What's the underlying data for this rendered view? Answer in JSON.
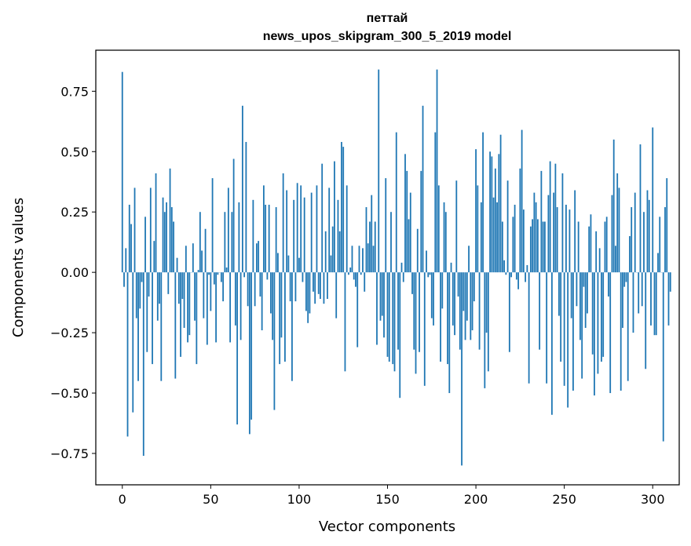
{
  "chart_data": {
    "type": "bar",
    "title_line1": "петтай",
    "title_line2": "news_upos_skipgram_300_5_2019 model",
    "xlabel": "Vector components",
    "ylabel": "Components values",
    "xlim": [
      -15,
      315
    ],
    "ylim": [
      -0.88,
      0.92
    ],
    "xticks": [
      0,
      50,
      100,
      150,
      200,
      250,
      300
    ],
    "xtick_labels": [
      "0",
      "50",
      "100",
      "150",
      "200",
      "250",
      "300"
    ],
    "yticks": [
      -0.75,
      -0.5,
      -0.25,
      0.0,
      0.25,
      0.5,
      0.75
    ],
    "ytick_labels": [
      "−0.75",
      "−0.50",
      "−0.25",
      "0.00",
      "0.25",
      "0.50",
      "0.75"
    ],
    "bar_color": "#1f77b4",
    "values": [
      0.83,
      -0.06,
      0.1,
      -0.68,
      0.28,
      0.2,
      -0.58,
      0.35,
      -0.19,
      -0.45,
      -0.15,
      -0.04,
      -0.76,
      0.23,
      -0.33,
      -0.1,
      0.35,
      -0.38,
      0.13,
      0.41,
      -0.2,
      -0.13,
      -0.45,
      0.31,
      0.25,
      0.29,
      -0.09,
      0.43,
      0.27,
      0.21,
      -0.44,
      0.06,
      -0.13,
      -0.35,
      -0.11,
      -0.23,
      0.11,
      -0.29,
      -0.26,
      0.0,
      0.12,
      -0.2,
      -0.38,
      0.01,
      0.25,
      0.09,
      -0.19,
      0.18,
      -0.3,
      -0.01,
      -0.16,
      0.39,
      -0.05,
      -0.29,
      -0.01,
      0.0,
      -0.04,
      -0.12,
      0.25,
      0.02,
      0.35,
      -0.29,
      0.25,
      0.47,
      -0.22,
      -0.63,
      0.29,
      -0.28,
      0.69,
      -0.02,
      0.54,
      -0.14,
      -0.67,
      -0.61,
      0.3,
      -0.14,
      0.12,
      0.13,
      -0.1,
      -0.24,
      0.36,
      0.28,
      -0.03,
      0.28,
      -0.17,
      -0.28,
      -0.57,
      0.27,
      0.08,
      -0.38,
      -0.27,
      0.41,
      -0.37,
      0.34,
      0.07,
      -0.12,
      -0.45,
      0.3,
      -0.12,
      0.37,
      0.06,
      0.36,
      -0.04,
      0.31,
      -0.16,
      -0.21,
      -0.17,
      0.33,
      -0.08,
      -0.13,
      0.36,
      -0.09,
      -0.11,
      0.45,
      -0.13,
      0.17,
      -0.11,
      0.35,
      0.07,
      0.19,
      0.46,
      -0.19,
      0.3,
      0.17,
      0.54,
      0.52,
      -0.41,
      0.36,
      -0.01,
      0.02,
      0.11,
      -0.03,
      -0.06,
      -0.31,
      0.11,
      -0.01,
      0.1,
      -0.08,
      0.27,
      0.12,
      0.21,
      0.32,
      0.11,
      0.21,
      -0.3,
      0.84,
      -0.2,
      -0.18,
      -0.27,
      0.39,
      -0.35,
      -0.37,
      0.25,
      -0.38,
      -0.41,
      0.58,
      -0.32,
      -0.52,
      0.04,
      -0.04,
      0.49,
      0.42,
      0.22,
      0.33,
      -0.09,
      -0.32,
      -0.42,
      0.18,
      -0.33,
      0.42,
      0.69,
      -0.47,
      0.09,
      -0.02,
      -0.01,
      -0.19,
      -0.22,
      0.58,
      0.84,
      0.36,
      -0.37,
      -0.15,
      0.29,
      0.25,
      -0.38,
      -0.5,
      0.04,
      -0.22,
      -0.26,
      0.38,
      -0.1,
      -0.32,
      -0.8,
      -0.16,
      -0.28,
      -0.2,
      0.11,
      -0.28,
      -0.24,
      -0.12,
      0.51,
      0.36,
      -0.32,
      0.29,
      0.58,
      -0.48,
      -0.25,
      -0.41,
      0.5,
      0.48,
      0.31,
      0.43,
      0.29,
      0.49,
      0.57,
      0.21,
      0.05,
      -0.01,
      0.38,
      -0.33,
      -0.02,
      0.23,
      0.28,
      -0.03,
      -0.07,
      0.43,
      0.59,
      0.26,
      -0.04,
      0.03,
      -0.46,
      0.19,
      0.22,
      0.33,
      0.29,
      0.22,
      -0.32,
      0.42,
      0.21,
      0.21,
      -0.46,
      0.32,
      0.46,
      -0.59,
      0.33,
      0.45,
      0.27,
      -0.18,
      -0.37,
      0.41,
      -0.47,
      0.28,
      -0.56,
      0.26,
      -0.19,
      -0.49,
      0.34,
      -0.14,
      0.21,
      -0.28,
      -0.44,
      -0.06,
      -0.23,
      -0.17,
      0.19,
      0.24,
      -0.34,
      -0.51,
      0.17,
      -0.42,
      0.1,
      -0.37,
      -0.35,
      0.21,
      0.23,
      -0.1,
      -0.5,
      0.32,
      0.55,
      0.11,
      0.41,
      0.35,
      -0.49,
      -0.23,
      -0.06,
      -0.04,
      -0.45,
      0.15,
      0.27,
      -0.25,
      0.33,
      0.0,
      -0.17,
      0.53,
      -0.14,
      0.25,
      -0.4,
      0.34,
      0.3,
      -0.22,
      0.6,
      -0.26,
      -0.26,
      0.08,
      0.23,
      0.0,
      -0.7,
      0.27,
      0.39,
      -0.22,
      -0.08
    ]
  }
}
